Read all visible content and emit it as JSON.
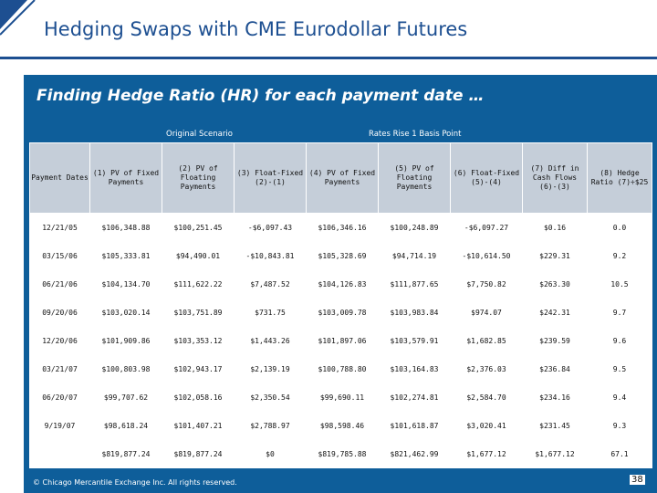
{
  "header": {
    "title": "Hedging Swaps with CME Eurodollar Futures"
  },
  "subtitle": "Finding Hedge Ratio (HR) for each payment date …",
  "groups": {
    "original": "Original Scenario",
    "rates_rise": "Rates Rise 1 Basis Point"
  },
  "table": {
    "headers": [
      "Payment Dates",
      "(1) PV of Fixed Payments",
      "(2) PV of Floating Payments",
      "(3) Float-Fixed (2)-(1)",
      "(4) PV of Fixed Payments",
      "(5) PV of Floating Payments",
      "(6) Float-Fixed (5)-(4)",
      "(7) Diff in Cash Flows (6)-(3)",
      "(8) Hedge Ratio (7)÷$25"
    ],
    "rows": [
      [
        "12/21/05",
        "$106,348.88",
        "$100,251.45",
        "-$6,097.43",
        "$106,346.16",
        "$100,248.89",
        "-$6,097.27",
        "$0.16",
        "0.0"
      ],
      [
        "03/15/06",
        "$105,333.81",
        "$94,490.01",
        "-$10,843.81",
        "$105,328.69",
        "$94,714.19",
        "-$10,614.50",
        "$229.31",
        "9.2"
      ],
      [
        "06/21/06",
        "$104,134.70",
        "$111,622.22",
        "$7,487.52",
        "$104,126.83",
        "$111,877.65",
        "$7,750.82",
        "$263.30",
        "10.5"
      ],
      [
        "09/20/06",
        "$103,020.14",
        "$103,751.89",
        "$731.75",
        "$103,009.78",
        "$103,983.84",
        "$974.07",
        "$242.31",
        "9.7"
      ],
      [
        "12/20/06",
        "$101,909.86",
        "$103,353.12",
        "$1,443.26",
        "$101,897.06",
        "$103,579.91",
        "$1,682.85",
        "$239.59",
        "9.6"
      ],
      [
        "03/21/07",
        "$100,803.98",
        "$102,943.17",
        "$2,139.19",
        "$100,788.80",
        "$103,164.83",
        "$2,376.03",
        "$236.84",
        "9.5"
      ],
      [
        "06/20/07",
        "$99,707.62",
        "$102,058.16",
        "$2,350.54",
        "$99,690.11",
        "$102,274.81",
        "$2,584.70",
        "$234.16",
        "9.4"
      ],
      [
        "9/19/07",
        "$98,618.24",
        "$101,407.21",
        "$2,788.97",
        "$98,598.46",
        "$101,618.87",
        "$3,020.41",
        "$231.45",
        "9.3"
      ],
      [
        "",
        "$819,877.24",
        "$819,877.24",
        "$0",
        "$819,785.88",
        "$821,462.99",
        "$1,677.12",
        "$1,677.12",
        "67.1"
      ]
    ]
  },
  "footer": {
    "copyright": "© Chicago Mercantile Exchange Inc. All rights reserved.",
    "page_number": "38"
  },
  "colors": {
    "title_blue": "#1d4f91",
    "panel_blue": "#0e5e9a",
    "header_gray": "#c5ced9"
  }
}
